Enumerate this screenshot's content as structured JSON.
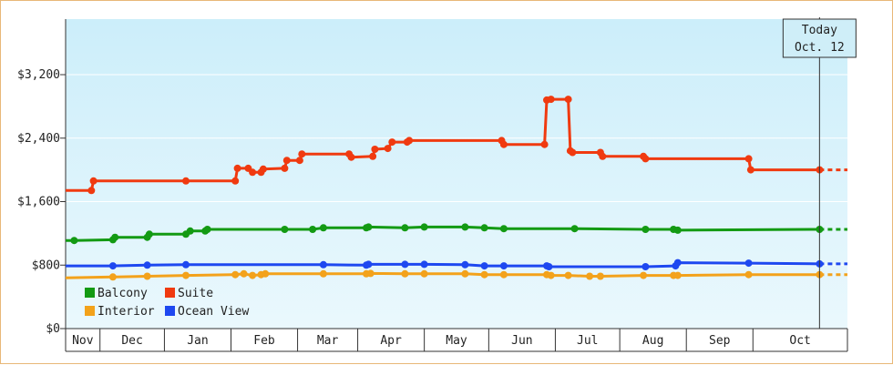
{
  "chart_data": {
    "type": "line",
    "title": "",
    "xlabel": "",
    "ylabel": "",
    "ylim": [
      0,
      3900
    ],
    "y_ticks": [
      0,
      800,
      1600,
      2400,
      3200
    ],
    "y_tick_labels": [
      "$0",
      "$800",
      "$1,600",
      "$2,400",
      "$3,200"
    ],
    "x_range": [
      "2014-10-26",
      "2015-10-25"
    ],
    "month_labels": [
      "Nov",
      "Dec",
      "Jan",
      "Feb",
      "Mar",
      "Apr",
      "May",
      "Jun",
      "Jul",
      "Aug",
      "Sep",
      "Oct"
    ],
    "month_boundaries": [
      "2014-11-11",
      "2014-12-11",
      "2015-01-11",
      "2015-02-11",
      "2015-03-11",
      "2015-04-11",
      "2015-05-11",
      "2015-06-11",
      "2015-07-11",
      "2015-08-11",
      "2015-09-11",
      "2015-10-11"
    ],
    "today_date": "2015-10-12",
    "today_label_line1": "Today",
    "today_label_line2": "Oct. 12",
    "grid": "horizontal",
    "legend_position": "bottom-left",
    "background_gradient": [
      "#cceefa",
      "#eaf8fd"
    ],
    "series": [
      {
        "name": "Suite",
        "color": "#f03a10",
        "points": [
          [
            "2014-10-26",
            1740
          ],
          [
            "2014-11-07",
            1740
          ],
          [
            "2014-11-08",
            1860
          ],
          [
            "2014-12-21",
            1860
          ],
          [
            "2015-01-13",
            1860
          ],
          [
            "2015-01-14",
            2020
          ],
          [
            "2015-01-19",
            2020
          ],
          [
            "2015-01-21",
            1970
          ],
          [
            "2015-01-25",
            1970
          ],
          [
            "2015-01-26",
            2010
          ],
          [
            "2015-02-05",
            2020
          ],
          [
            "2015-02-06",
            2120
          ],
          [
            "2015-02-12",
            2120
          ],
          [
            "2015-02-13",
            2200
          ],
          [
            "2015-03-07",
            2200
          ],
          [
            "2015-03-08",
            2160
          ],
          [
            "2015-03-18",
            2170
          ],
          [
            "2015-03-19",
            2260
          ],
          [
            "2015-03-25",
            2270
          ],
          [
            "2015-03-27",
            2350
          ],
          [
            "2015-04-03",
            2350
          ],
          [
            "2015-04-04",
            2370
          ],
          [
            "2015-05-17",
            2370
          ],
          [
            "2015-05-18",
            2320
          ],
          [
            "2015-06-06",
            2320
          ],
          [
            "2015-06-07",
            2880
          ],
          [
            "2015-06-09",
            2890
          ],
          [
            "2015-06-17",
            2890
          ],
          [
            "2015-06-18",
            2240
          ],
          [
            "2015-06-19",
            2220
          ],
          [
            "2015-07-02",
            2220
          ],
          [
            "2015-07-03",
            2170
          ],
          [
            "2015-07-22",
            2170
          ],
          [
            "2015-07-23",
            2140
          ],
          [
            "2015-09-09",
            2140
          ],
          [
            "2015-09-10",
            2000
          ],
          [
            "2015-10-12",
            2000
          ]
        ],
        "projection": [
          [
            "2015-10-12",
            2000
          ],
          [
            "2015-10-25",
            2000
          ]
        ]
      },
      {
        "name": "Balcony",
        "color": "#139a13",
        "points": [
          [
            "2014-10-26",
            1110
          ],
          [
            "2014-10-30",
            1110
          ],
          [
            "2014-11-17",
            1120
          ],
          [
            "2014-11-18",
            1150
          ],
          [
            "2014-12-03",
            1150
          ],
          [
            "2014-12-04",
            1190
          ],
          [
            "2014-12-21",
            1190
          ],
          [
            "2014-12-23",
            1230
          ],
          [
            "2014-12-30",
            1230
          ],
          [
            "2014-12-31",
            1250
          ],
          [
            "2015-02-05",
            1250
          ],
          [
            "2015-02-18",
            1250
          ],
          [
            "2015-02-23",
            1270
          ],
          [
            "2015-03-15",
            1270
          ],
          [
            "2015-03-16",
            1280
          ],
          [
            "2015-04-02",
            1270
          ],
          [
            "2015-04-11",
            1280
          ],
          [
            "2015-04-30",
            1280
          ],
          [
            "2015-05-09",
            1270
          ],
          [
            "2015-05-18",
            1260
          ],
          [
            "2015-06-20",
            1260
          ],
          [
            "2015-07-23",
            1250
          ],
          [
            "2015-08-05",
            1250
          ],
          [
            "2015-08-07",
            1240
          ],
          [
            "2015-10-12",
            1250
          ]
        ],
        "projection": [
          [
            "2015-10-12",
            1250
          ],
          [
            "2015-10-25",
            1250
          ]
        ]
      },
      {
        "name": "Ocean View",
        "color": "#1e48f0",
        "points": [
          [
            "2014-10-26",
            790
          ],
          [
            "2014-11-17",
            790
          ],
          [
            "2014-12-03",
            800
          ],
          [
            "2014-12-21",
            805
          ],
          [
            "2015-02-23",
            805
          ],
          [
            "2015-03-15",
            800
          ],
          [
            "2015-03-16",
            810
          ],
          [
            "2015-04-02",
            810
          ],
          [
            "2015-04-11",
            810
          ],
          [
            "2015-04-30",
            805
          ],
          [
            "2015-05-09",
            790
          ],
          [
            "2015-05-18",
            790
          ],
          [
            "2015-06-07",
            790
          ],
          [
            "2015-06-08",
            780
          ],
          [
            "2015-07-23",
            780
          ],
          [
            "2015-08-06",
            790
          ],
          [
            "2015-08-07",
            830
          ],
          [
            "2015-09-09",
            825
          ],
          [
            "2015-10-12",
            815
          ]
        ],
        "projection": [
          [
            "2015-10-12",
            815
          ],
          [
            "2015-10-25",
            815
          ]
        ]
      },
      {
        "name": "Interior",
        "color": "#f3a21b",
        "points": [
          [
            "2014-10-26",
            640
          ],
          [
            "2014-11-17",
            650
          ],
          [
            "2014-12-03",
            660
          ],
          [
            "2014-12-21",
            670
          ],
          [
            "2015-01-13",
            680
          ],
          [
            "2015-01-17",
            690
          ],
          [
            "2015-01-21",
            670
          ],
          [
            "2015-01-25",
            680
          ],
          [
            "2015-01-27",
            690
          ],
          [
            "2015-02-23",
            690
          ],
          [
            "2015-03-15",
            690
          ],
          [
            "2015-03-17",
            695
          ],
          [
            "2015-04-02",
            690
          ],
          [
            "2015-04-11",
            690
          ],
          [
            "2015-04-30",
            690
          ],
          [
            "2015-05-09",
            680
          ],
          [
            "2015-05-18",
            680
          ],
          [
            "2015-06-07",
            680
          ],
          [
            "2015-06-09",
            670
          ],
          [
            "2015-06-17",
            670
          ],
          [
            "2015-06-27",
            660
          ],
          [
            "2015-07-02",
            660
          ],
          [
            "2015-07-22",
            670
          ],
          [
            "2015-08-05",
            670
          ],
          [
            "2015-08-07",
            670
          ],
          [
            "2015-09-09",
            680
          ],
          [
            "2015-10-12",
            680
          ]
        ],
        "projection": [
          [
            "2015-10-12",
            680
          ],
          [
            "2015-10-25",
            680
          ]
        ]
      }
    ],
    "legend": [
      {
        "name": "Balcony",
        "color": "#139a13"
      },
      {
        "name": "Suite",
        "color": "#f03a10"
      },
      {
        "name": "Interior",
        "color": "#f3a21b"
      },
      {
        "name": "Ocean View",
        "color": "#1e48f0"
      }
    ]
  }
}
